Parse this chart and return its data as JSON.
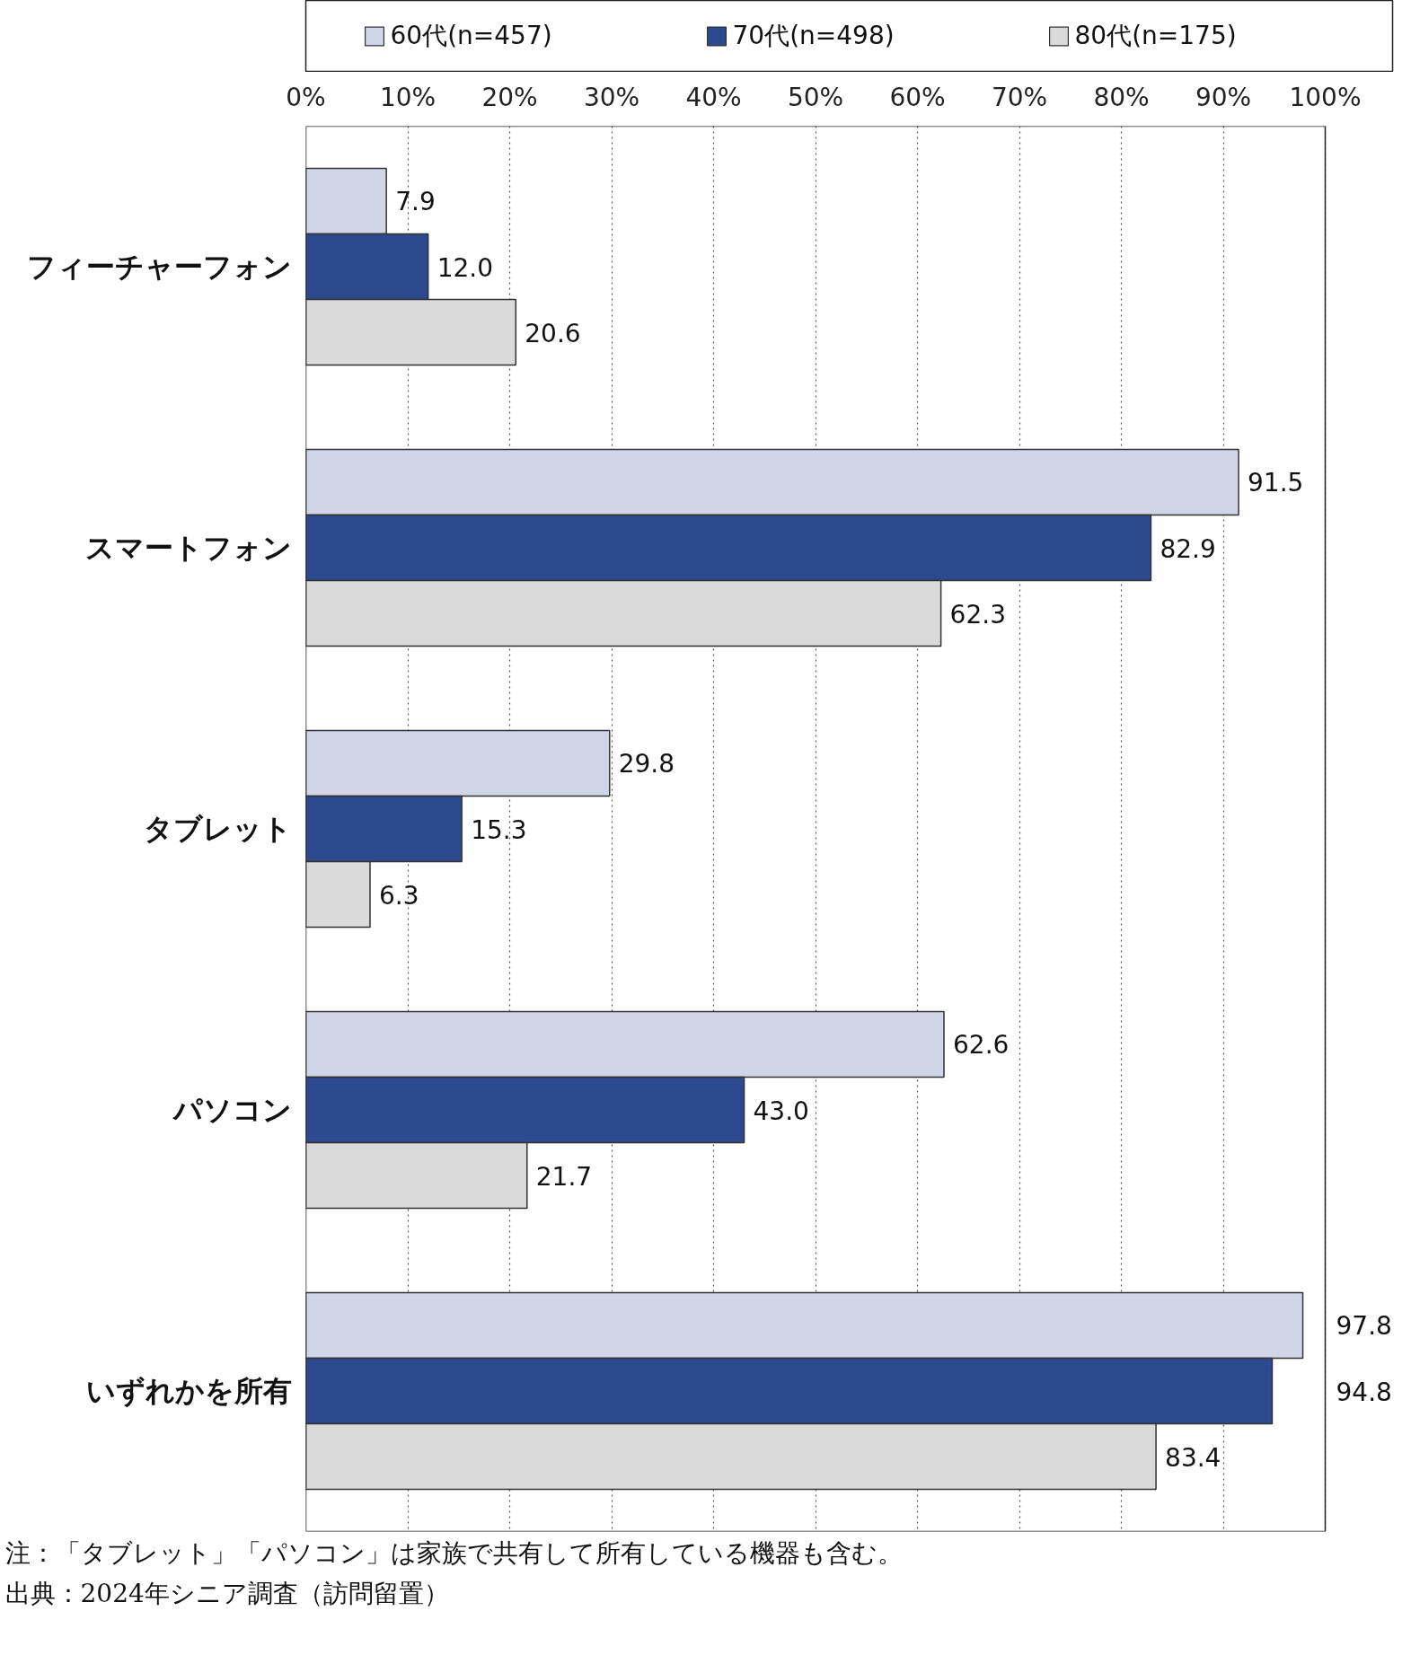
{
  "chart_data": {
    "type": "bar",
    "orientation": "horizontal",
    "categories": [
      "フィーチャーフォン",
      "スマートフォン",
      "タブレット",
      "パソコン",
      "いずれかを所有"
    ],
    "series": [
      {
        "name": "60代(n=457)",
        "color": "#d1d5e8",
        "values": [
          7.9,
          91.5,
          29.8,
          62.6,
          97.8
        ],
        "value_labels": [
          "7.9",
          "91.5",
          "29.8",
          "62.6",
          "97.8"
        ]
      },
      {
        "name": "70代(n=498)",
        "color": "#2e4a8f",
        "values": [
          12.0,
          82.9,
          15.3,
          43.0,
          94.8
        ],
        "value_labels": [
          "12.0",
          "82.9",
          "15.3",
          "43.0",
          "94.8"
        ]
      },
      {
        "name": "80代(n=175)",
        "color": "#dadada",
        "values": [
          20.6,
          62.3,
          6.3,
          21.7,
          83.4
        ],
        "value_labels": [
          "20.6",
          "62.3",
          "6.3",
          "21.7",
          "83.4"
        ]
      }
    ],
    "xlim": [
      0,
      100
    ],
    "xticks": [
      {
        "value": 0,
        "label": "0%"
      },
      {
        "value": 10,
        "label": "10%"
      },
      {
        "value": 20,
        "label": "20%"
      },
      {
        "value": 30,
        "label": "30%"
      },
      {
        "value": 40,
        "label": "40%"
      },
      {
        "value": 50,
        "label": "50%"
      },
      {
        "value": 60,
        "label": "60%"
      },
      {
        "value": 70,
        "label": "70%"
      },
      {
        "value": 80,
        "label": "80%"
      },
      {
        "value": 90,
        "label": "90%"
      },
      {
        "value": 100,
        "label": "100%"
      }
    ],
    "grid": "x",
    "legend": "top",
    "annotations": [
      "注：「タブレット」「パソコン」は家族で共有して所有している機器も含む。",
      "出典：2024年シニア調査（訪問留置）"
    ]
  }
}
